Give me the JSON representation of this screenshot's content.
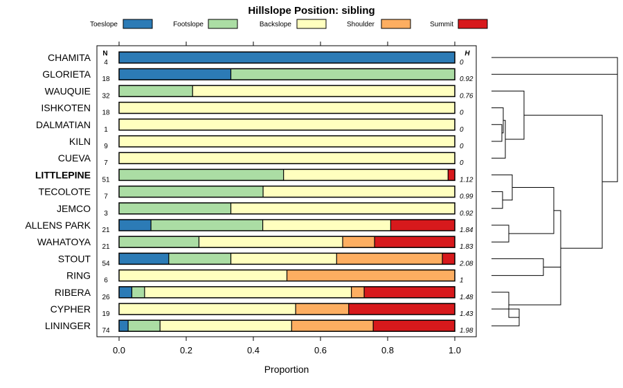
{
  "chart_data": {
    "type": "stacked-bar",
    "title": "Hillslope Position: sibling",
    "xlabel": "Proportion",
    "xlim": [
      0,
      1
    ],
    "xticks": [
      "0.0",
      "0.2",
      "0.4",
      "0.6",
      "0.8",
      "1.0"
    ],
    "n_header": "N",
    "h_header": "H",
    "bold_row": "LITTLEPINE",
    "legend": [
      {
        "name": "Toeslope",
        "color": "#2c7bb6"
      },
      {
        "name": "Footslope",
        "color": "#abdda4"
      },
      {
        "name": "Backslope",
        "color": "#ffffbf"
      },
      {
        "name": "Shoulder",
        "color": "#fdae61"
      },
      {
        "name": "Summit",
        "color": "#d7191c"
      }
    ],
    "rows": [
      {
        "label": "CHAMITA",
        "n": "4",
        "h": "0",
        "values": [
          1.0,
          0,
          0,
          0,
          0
        ]
      },
      {
        "label": "GLORIETA",
        "n": "18",
        "h": "0.92",
        "values": [
          0.333,
          0.667,
          0,
          0,
          0
        ]
      },
      {
        "label": "WAUQUIE",
        "n": "32",
        "h": "0.76",
        "values": [
          0,
          0.219,
          0.781,
          0,
          0
        ]
      },
      {
        "label": "ISHKOTEN",
        "n": "18",
        "h": "0",
        "values": [
          0,
          0,
          1.0,
          0,
          0
        ]
      },
      {
        "label": "DALMATIAN",
        "n": "1",
        "h": "0",
        "values": [
          0,
          0,
          1.0,
          0,
          0
        ]
      },
      {
        "label": "KILN",
        "n": "9",
        "h": "0",
        "values": [
          0,
          0,
          1.0,
          0,
          0
        ]
      },
      {
        "label": "CUEVA",
        "n": "7",
        "h": "0",
        "values": [
          0,
          0,
          1.0,
          0,
          0
        ]
      },
      {
        "label": "LITTLEPINE",
        "n": "51",
        "h": "1.12",
        "values": [
          0,
          0.49,
          0.49,
          0,
          0.02
        ]
      },
      {
        "label": "TECOLOTE",
        "n": "7",
        "h": "0.99",
        "values": [
          0,
          0.429,
          0.571,
          0,
          0
        ]
      },
      {
        "label": "JEMCO",
        "n": "3",
        "h": "0.92",
        "values": [
          0,
          0.333,
          0.667,
          0,
          0
        ]
      },
      {
        "label": "ALLENS PARK",
        "n": "21",
        "h": "1.84",
        "values": [
          0.095,
          0.333,
          0.381,
          0,
          0.191
        ]
      },
      {
        "label": "WAHATOYA",
        "n": "21",
        "h": "1.83",
        "values": [
          0,
          0.238,
          0.428,
          0.095,
          0.239
        ]
      },
      {
        "label": "STOUT",
        "n": "54",
        "h": "2.08",
        "values": [
          0.148,
          0.185,
          0.315,
          0.315,
          0.037
        ]
      },
      {
        "label": "RING",
        "n": "6",
        "h": "1",
        "values": [
          0,
          0,
          0.5,
          0.5,
          0
        ]
      },
      {
        "label": "RIBERA",
        "n": "26",
        "h": "1.48",
        "values": [
          0.038,
          0.038,
          0.616,
          0.038,
          0.27
        ]
      },
      {
        "label": "CYPHER",
        "n": "19",
        "h": "1.43",
        "values": [
          0,
          0,
          0.526,
          0.158,
          0.316
        ]
      },
      {
        "label": "LININGER",
        "n": "74",
        "h": "1.98",
        "values": [
          0.027,
          0.095,
          0.392,
          0.243,
          0.243
        ]
      }
    ]
  }
}
